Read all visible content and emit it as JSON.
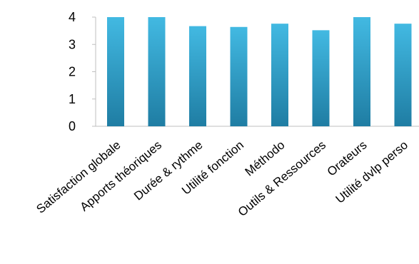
{
  "chart_data": {
    "type": "bar",
    "title": "",
    "xlabel": "",
    "ylabel": "",
    "categories": [
      "Satisfaction globale",
      "Apports théoriques",
      "Durée & rythme",
      "Utilité fonction",
      "Méthodo",
      "Outils & Ressources",
      "Orateurs",
      "Utilité dvlp perso"
    ],
    "values": [
      4.0,
      4.0,
      3.67,
      3.64,
      3.76,
      3.52,
      4.0,
      3.76
    ],
    "ylim": [
      0,
      4
    ],
    "yticks": [
      "0",
      "1",
      "2",
      "3",
      "4"
    ],
    "grid": false,
    "legend": "none",
    "colors": {
      "bar_top": "#42b9e2",
      "bar_bottom": "#1f7da3",
      "axis": "#bfbfbf"
    }
  }
}
